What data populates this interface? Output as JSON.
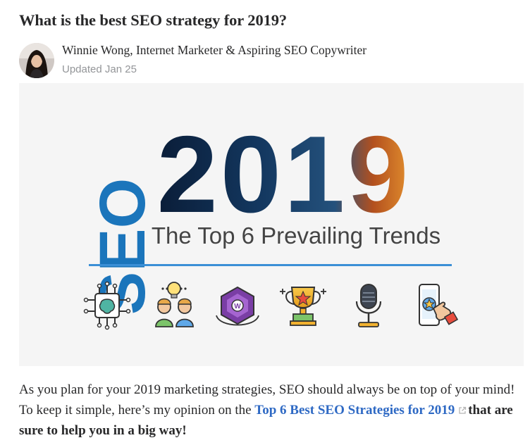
{
  "question": {
    "title": "What is the best SEO strategy for 2019?"
  },
  "author": {
    "name_credential": "Winnie Wong, Internet Marketer & Aspiring SEO Copywriter",
    "updated": "Updated Jan 25"
  },
  "hero_image": {
    "vertical_text": "SEO",
    "year_text": "2019",
    "subtitle": "The Top 6 Prevailing Trends",
    "icons": [
      "ai-chip-icon",
      "people-idea-icon",
      "hexagon-w-icon",
      "trophy-icon",
      "microphone-icon",
      "phone-review-icon"
    ],
    "colors": {
      "seo_blue": "#1b75bb",
      "divider_blue": "#3b8fd6",
      "subtitle_gray": "#444444"
    }
  },
  "answer": {
    "text_before_link": "As you plan for your 2019 marketing strategies, SEO should always be on top of your mind! To keep it simple, here’s my opinion on the ",
    "link_text": "Top 6 Best SEO Strategies for 2019",
    "text_after_link": "that are sure to help you in a big way!"
  },
  "colors": {
    "link": "#2e69c4",
    "text": "#282829",
    "muted": "#939598"
  }
}
